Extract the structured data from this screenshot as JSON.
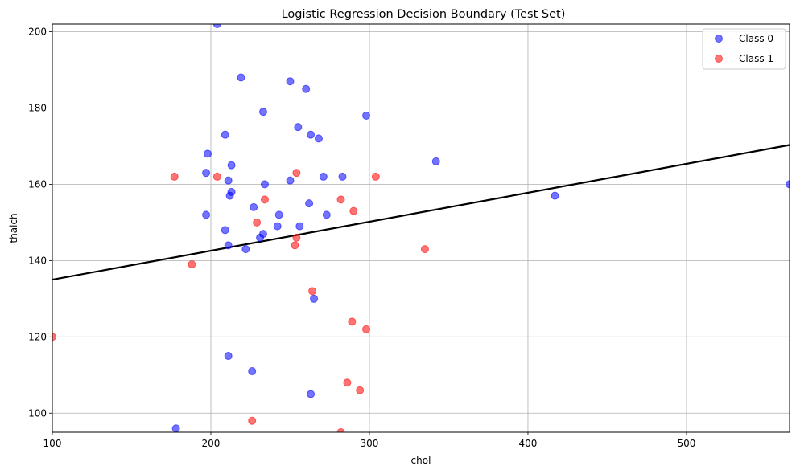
{
  "chart_data": {
    "type": "scatter",
    "title": "Logistic Regression Decision Boundary (Test Set)",
    "xlabel": "chol",
    "ylabel": "thalch",
    "xlim": [
      100,
      565
    ],
    "ylim": [
      95,
      202
    ],
    "xticks": [
      100,
      200,
      300,
      400,
      500
    ],
    "yticks": [
      100,
      120,
      140,
      160,
      180,
      200
    ],
    "grid": true,
    "legend_position": "top-right",
    "series": [
      {
        "name": "Class 0",
        "color": "#0000ff",
        "points": [
          [
            204,
            202
          ],
          [
            219,
            188
          ],
          [
            250,
            187
          ],
          [
            260,
            185
          ],
          [
            233,
            179
          ],
          [
            298,
            178
          ],
          [
            255,
            175
          ],
          [
            209,
            173
          ],
          [
            263,
            173
          ],
          [
            268,
            172
          ],
          [
            198,
            168
          ],
          [
            342,
            166
          ],
          [
            213,
            165
          ],
          [
            197,
            163
          ],
          [
            211,
            161
          ],
          [
            250,
            161
          ],
          [
            271,
            162
          ],
          [
            283,
            162
          ],
          [
            234,
            160
          ],
          [
            565,
            160
          ],
          [
            213,
            158
          ],
          [
            212,
            157
          ],
          [
            417,
            157
          ],
          [
            262,
            155
          ],
          [
            227,
            154
          ],
          [
            197,
            152
          ],
          [
            243,
            152
          ],
          [
            273,
            152
          ],
          [
            256,
            149
          ],
          [
            242,
            149
          ],
          [
            209,
            148
          ],
          [
            233,
            147
          ],
          [
            231,
            146
          ],
          [
            211,
            144
          ],
          [
            222,
            143
          ],
          [
            265,
            130
          ],
          [
            211,
            115
          ],
          [
            226,
            111
          ],
          [
            263,
            105
          ],
          [
            178,
            96
          ]
        ]
      },
      {
        "name": "Class 1",
        "color": "#ff0000",
        "points": [
          [
            177,
            162
          ],
          [
            204,
            162
          ],
          [
            254,
            163
          ],
          [
            304,
            162
          ],
          [
            234,
            156
          ],
          [
            282,
            156
          ],
          [
            229,
            150
          ],
          [
            290,
            153
          ],
          [
            254,
            146
          ],
          [
            253,
            144
          ],
          [
            335,
            143
          ],
          [
            188,
            139
          ],
          [
            264,
            132
          ],
          [
            289,
            124
          ],
          [
            298,
            122
          ],
          [
            100,
            120
          ],
          [
            286,
            108
          ],
          [
            294,
            106
          ],
          [
            226,
            98
          ],
          [
            282,
            95
          ]
        ]
      }
    ],
    "decision_boundary": {
      "color": "#000000",
      "x": [
        100,
        565
      ],
      "y": [
        135.0,
        170.3
      ]
    }
  }
}
